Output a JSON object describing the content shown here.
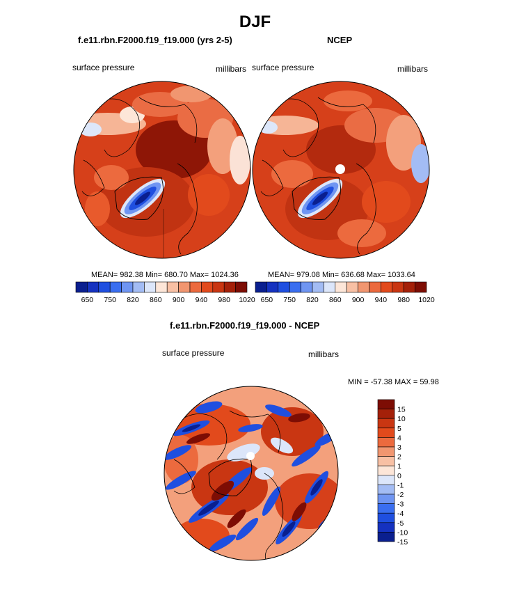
{
  "figure_title": "DJF",
  "colors": {
    "abs_scale": [
      "#0a1f8f",
      "#1532c0",
      "#1f4fe0",
      "#3a6ef0",
      "#6f95f2",
      "#a3bcf4",
      "#dce6fa",
      "#fde6d8",
      "#f8c0a4",
      "#f19670",
      "#ec6a3e",
      "#e24a1c",
      "#c93612",
      "#a42009",
      "#7d0d04"
    ],
    "diff_scale": [
      "#7d0d04",
      "#a42009",
      "#c93612",
      "#e24a1c",
      "#ec6a3e",
      "#f19670",
      "#f8c0a4",
      "#fde6d8",
      "#dce6fa",
      "#a3bcf4",
      "#6f95f2",
      "#3a6ef0",
      "#1f4fe0",
      "#1532c0",
      "#0a1f8f"
    ]
  },
  "chart_data": [
    {
      "type": "heatmap",
      "projection": "polar-stereographic",
      "title": "f.e11.rbn.F2000.f19_f19.000 (yrs 2-5)",
      "left_label": "surface pressure",
      "right_label": "millibars",
      "stats": {
        "mean": "982.38",
        "min": "680.70",
        "max": "1024.36"
      },
      "stats_text": "MEAN= 982.38  Min= 680.70  Max= 1024.36",
      "colorbar_orientation": "horizontal",
      "colorbar_tick_labels": [
        "650",
        "750",
        "820",
        "860",
        "900",
        "940",
        "980",
        "1020"
      ]
    },
    {
      "type": "heatmap",
      "projection": "polar-stereographic",
      "title": "NCEP",
      "left_label": "surface pressure",
      "right_label": "millibars",
      "stats": {
        "mean": "979.08",
        "min": "636.68",
        "max": "1033.64"
      },
      "stats_text": "MEAN= 979.08  Min= 636.68  Max= 1033.64",
      "colorbar_orientation": "horizontal",
      "colorbar_tick_labels": [
        "650",
        "750",
        "820",
        "860",
        "900",
        "940",
        "980",
        "1020"
      ]
    },
    {
      "type": "heatmap",
      "projection": "polar-stereographic",
      "title": "f.e11.rbn.F2000.f19_f19.000 - NCEP",
      "left_label": "surface pressure",
      "right_label": "millibars",
      "stats": {
        "min": "-57.38",
        "max": "59.98"
      },
      "stats_text": "MIN = -57.38 MAX =  59.98",
      "colorbar_orientation": "vertical",
      "colorbar_tick_labels": [
        "15",
        "10",
        "5",
        "4",
        "3",
        "2",
        "1",
        "0",
        "-1",
        "-2",
        "-3",
        "-4",
        "-5",
        "-10",
        "-15"
      ]
    }
  ]
}
